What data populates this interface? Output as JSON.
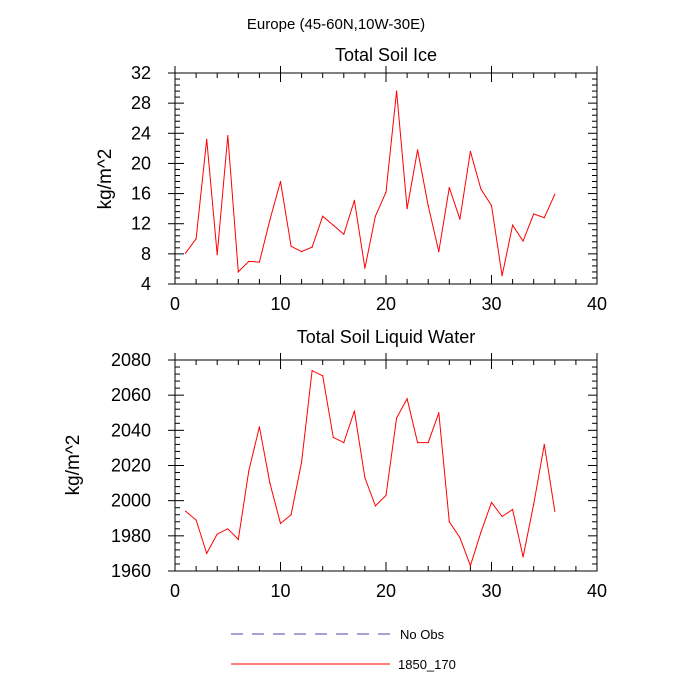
{
  "header": {
    "title": "Europe (45-60N,10W-30E)"
  },
  "chart_data": [
    {
      "type": "line",
      "title": "Total Soil Ice",
      "xlabel": "",
      "ylabel": "kg/m^2",
      "xlim": [
        0,
        40
      ],
      "ylim": [
        4,
        32
      ],
      "xticks": [
        0,
        10,
        20,
        30,
        40
      ],
      "yticks": [
        4,
        8,
        12,
        16,
        20,
        24,
        28,
        32
      ],
      "series": [
        {
          "name": "1850_170",
          "color": "#ff0000",
          "x": [
            1,
            2,
            3,
            4,
            5,
            6,
            7,
            8,
            9,
            10,
            11,
            12,
            13,
            14,
            15,
            16,
            17,
            18,
            19,
            20,
            21,
            22,
            23,
            24,
            25,
            26,
            27,
            28,
            29,
            30,
            31,
            32,
            33,
            34,
            35,
            36
          ],
          "values": [
            8.1,
            10.0,
            23.2,
            7.9,
            23.7,
            5.6,
            7.0,
            6.9,
            12.5,
            17.6,
            9.0,
            8.3,
            8.9,
            13.0,
            11.8,
            10.6,
            15.1,
            6.1,
            13.0,
            16.2,
            29.6,
            14.0,
            21.8,
            14.4,
            8.3,
            16.8,
            12.6,
            21.6,
            16.6,
            14.4,
            5.1,
            11.8,
            9.7,
            13.3,
            12.8,
            15.9
          ]
        }
      ]
    },
    {
      "type": "line",
      "title": "Total Soil Liquid Water",
      "xlabel": "",
      "ylabel": "kg/m^2",
      "xlim": [
        0,
        40
      ],
      "ylim": [
        1960,
        2080
      ],
      "xticks": [
        0,
        10,
        20,
        30,
        40
      ],
      "yticks": [
        1960,
        1980,
        2000,
        2020,
        2040,
        2060,
        2080
      ],
      "series": [
        {
          "name": "1850_170",
          "color": "#ff0000",
          "x": [
            1,
            2,
            3,
            4,
            5,
            6,
            7,
            8,
            9,
            10,
            11,
            12,
            13,
            14,
            15,
            16,
            17,
            18,
            19,
            20,
            21,
            22,
            23,
            24,
            25,
            26,
            27,
            28,
            29,
            30,
            31,
            32,
            33,
            34,
            35,
            36
          ],
          "values": [
            1994,
            1989,
            1970,
            1981,
            1984,
            1978,
            2017,
            2042,
            2010,
            1987,
            1992,
            2022,
            2074,
            2071,
            2036,
            2033,
            2051,
            2013,
            1997,
            2003,
            2047,
            2058,
            2033,
            2033,
            2050,
            1988,
            1979,
            1963,
            1982,
            1999,
            1991,
            1995,
            1968,
            1998,
            2032,
            1994
          ]
        }
      ]
    }
  ],
  "legend": [
    {
      "label": "No Obs",
      "color": "#4a4aa8",
      "style": "dashed"
    },
    {
      "label": "1850_170",
      "color": "#ff0000",
      "style": "solid"
    }
  ]
}
